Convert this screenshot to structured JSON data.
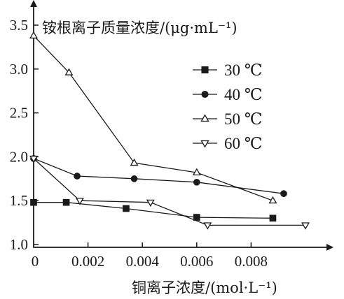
{
  "chart_data": {
    "type": "line",
    "xlabel": "铜离子浓度/(mol·L⁻¹)",
    "ylabel": "铵根离子质量浓度/(μg·mL⁻¹)",
    "xlim": [
      0,
      0.01
    ],
    "ylim": [
      1.0,
      3.5
    ],
    "x_ticks": [
      0,
      0.002,
      0.004,
      0.006,
      0.008
    ],
    "x_tick_labels": [
      "0",
      "0.002",
      "0.004",
      "0.006",
      "0.008"
    ],
    "y_ticks": [
      1.0,
      1.5,
      2.0,
      2.5,
      3.0,
      3.5
    ],
    "y_tick_labels": [
      "1.0",
      "1.5",
      "2.0",
      "2.5",
      "3.0",
      "3.5"
    ],
    "grid": false,
    "legend_position": "top-right",
    "series": [
      {
        "name": "30 ℃",
        "marker": "filled-square",
        "points": [
          [
            0,
            1.48
          ],
          [
            0.0012,
            1.48
          ],
          [
            0.0034,
            1.41
          ],
          [
            0.006,
            1.31
          ],
          [
            0.0088,
            1.3
          ]
        ]
      },
      {
        "name": "40 ℃",
        "marker": "filled-circle",
        "points": [
          [
            0,
            1.98
          ],
          [
            0.0016,
            1.78
          ],
          [
            0.0037,
            1.75
          ],
          [
            0.006,
            1.71
          ],
          [
            0.0092,
            1.58
          ]
        ]
      },
      {
        "name": "50 ℃",
        "marker": "open-triangle-up",
        "points": [
          [
            0,
            3.38
          ],
          [
            0.0013,
            2.96
          ],
          [
            0.0037,
            1.93
          ],
          [
            0.006,
            1.82
          ],
          [
            0.0088,
            1.5
          ]
        ]
      },
      {
        "name": "60 ℃",
        "marker": "open-triangle-down",
        "points": [
          [
            0,
            1.98
          ],
          [
            0.0017,
            1.5
          ],
          [
            0.0043,
            1.48
          ],
          [
            0.0064,
            1.22
          ],
          [
            0.01,
            1.22
          ]
        ]
      }
    ]
  }
}
